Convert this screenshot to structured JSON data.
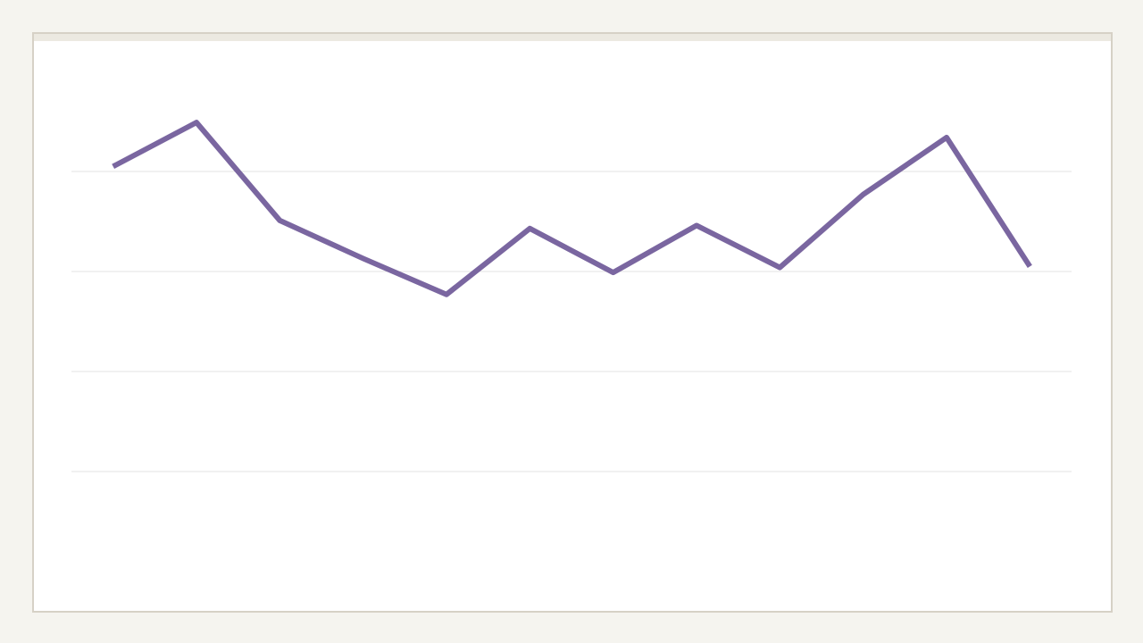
{
  "chart_data": {
    "type": "line",
    "categories": [
      null,
      null,
      null,
      null,
      null,
      null,
      null,
      null,
      null,
      null,
      null,
      null
    ],
    "series": [
      {
        "color": "#7a66a0",
        "values": [
          4.05,
          4.49,
          3.51,
          3.13,
          2.77,
          3.43,
          2.99,
          3.46,
          3.04,
          3.77,
          4.34,
          3.05
        ]
      }
    ],
    "ylim": [
      0,
      5
    ],
    "yticks": [
      1,
      2,
      3,
      4
    ],
    "grid": true
  }
}
